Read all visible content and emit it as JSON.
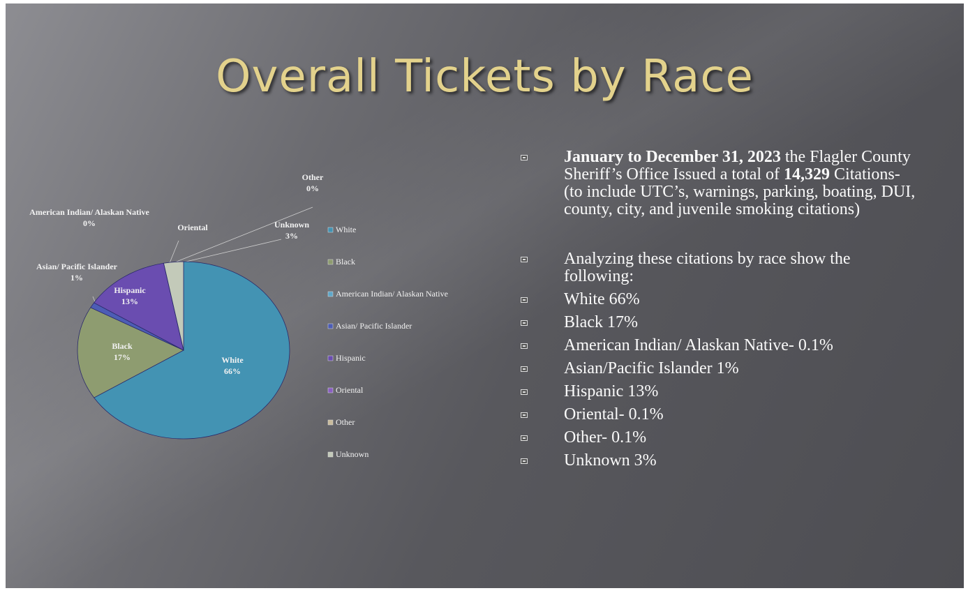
{
  "title": "Overall Tickets by Race",
  "chart_data": {
    "type": "pie",
    "categories": [
      "White",
      "Black",
      "American Indian/ Alaskan Native",
      "Asian/ Pacific Islander",
      "Hispanic",
      "Oriental",
      "Other",
      "Unknown"
    ],
    "values": [
      66,
      17,
      0,
      1,
      13,
      0,
      0,
      3
    ],
    "value_labels": [
      "66%",
      "17%",
      "0%",
      "1%",
      "13%",
      null,
      "0%",
      "3%"
    ],
    "colors": [
      "#4393b3",
      "#8e9c70",
      "#5ea7c9",
      "#4d5db5",
      "#6a4db0",
      "#8a5fc2",
      "#c9bb9c",
      "#c3cab9"
    ]
  },
  "bullets": [
    {
      "runs": [
        {
          "text": "January to December 31, 2023",
          "bold": true
        },
        {
          "text": " the Flagler County Sheriff’s Office Issued a total of ",
          "bold": false
        },
        {
          "text": "14,329",
          "bold": true
        },
        {
          "text": " Citations- (to include UTC’s, warnings, parking, boating, DUI, county, city, and juvenile smoking citations)",
          "bold": false
        }
      ]
    },
    {
      "text": "Analyzing these citations by race show the following:"
    },
    {
      "text": "White 66%"
    },
    {
      "text": "Black 17%"
    },
    {
      "text": "American Indian/ Alaskan Native- 0.1%"
    },
    {
      "text": "Asian/Pacific Islander 1%"
    },
    {
      "text": "Hispanic 13%"
    },
    {
      "text": "Oriental- 0.1%"
    },
    {
      "text": "Other- 0.1%"
    },
    {
      "text": "Unknown 3%"
    }
  ]
}
